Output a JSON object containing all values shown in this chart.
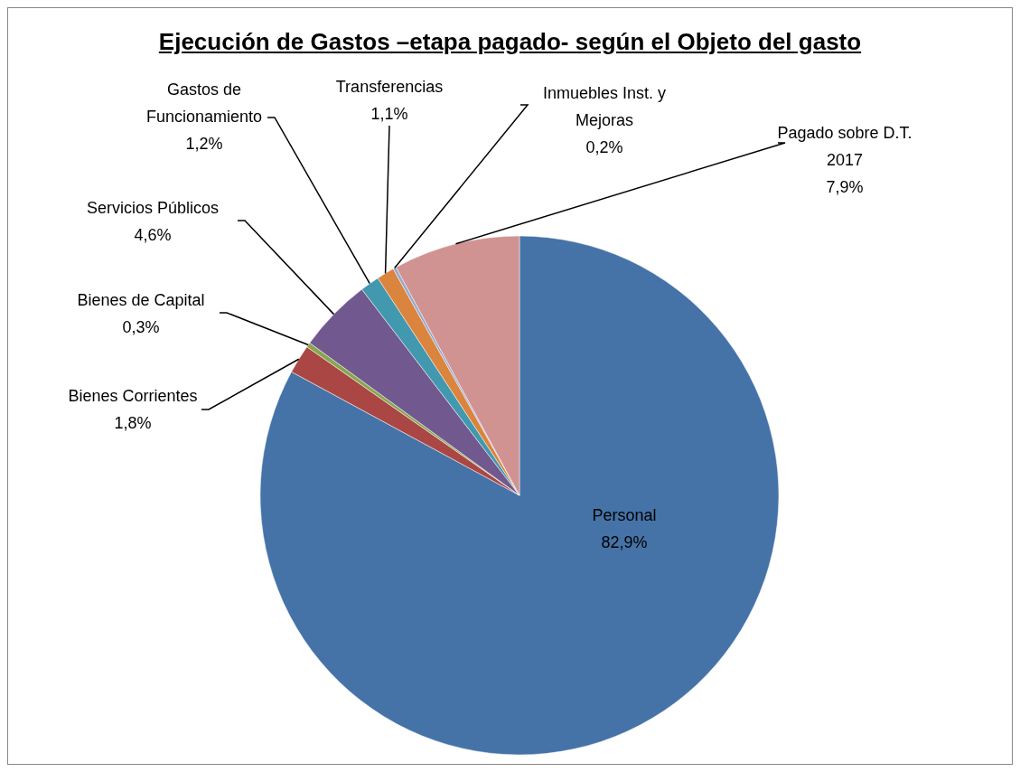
{
  "chart_data": {
    "type": "pie",
    "title": "Ejecución de Gastos –etapa pagado- según el Objeto del gasto",
    "categories": [
      "Personal",
      "Bienes Corrientes",
      "Bienes de Capital",
      "Servicios Públicos",
      "Gastos de Funcionamiento",
      "Transferencias",
      "Inmuebles Inst. y Mejoras",
      "Pagado sobre D.T. 2017"
    ],
    "values": [
      82.9,
      1.8,
      0.3,
      4.6,
      1.2,
      1.1,
      0.2,
      7.9
    ],
    "value_labels": [
      "82,9%",
      "1,8%",
      "0,3%",
      "4,6%",
      "1,2%",
      "1,1%",
      "0,2%",
      "7,9%"
    ],
    "colors": [
      "#4573a7",
      "#aa4643",
      "#89a54e",
      "#71588f",
      "#4198af",
      "#db843d",
      "#93a9cf",
      "#d19392"
    ],
    "legend": false
  }
}
